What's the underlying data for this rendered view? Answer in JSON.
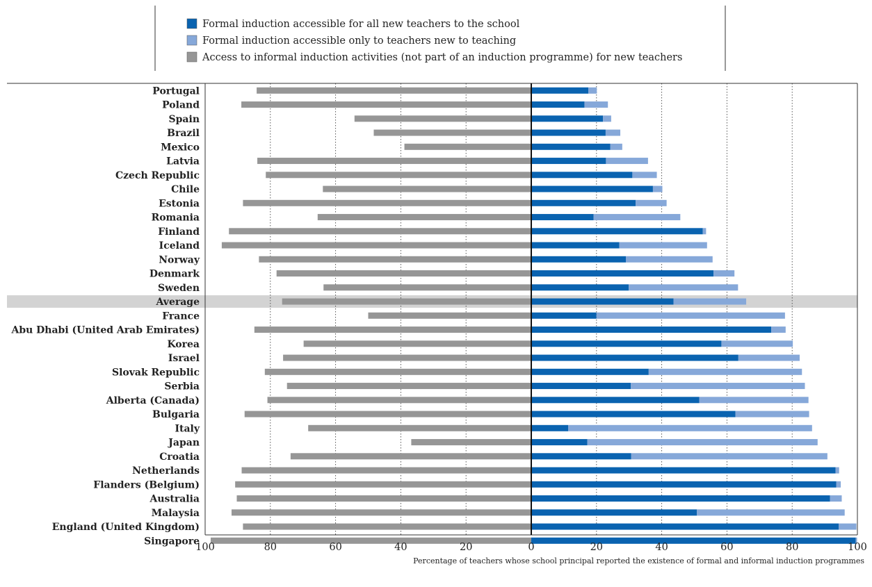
{
  "legend": {
    "items": [
      {
        "label": "Formal induction accessible for all new teachers to the school",
        "color": "#0a63b0"
      },
      {
        "label": "Formal induction accessible only to teachers new to teaching",
        "color": "#86a8d9"
      },
      {
        "label": "Access to informal induction activities (not part of an induction programme) for new teachers",
        "color": "#969696"
      }
    ]
  },
  "axis": {
    "ticks": [
      "100",
      "80",
      "60",
      "40",
      "20",
      "0",
      "20",
      "40",
      "60",
      "80",
      "100"
    ],
    "caption": "Percentage of teachers whose school principal reported the existence of formal and informal induction programmes"
  },
  "colors": {
    "formal_all": "#0a63b0",
    "formal_new": "#86a8d9",
    "informal": "#969696",
    "highlight_row": "#d3d3d3"
  },
  "chart_data": {
    "type": "bar",
    "orientation": "horizontal",
    "xlim_left": [
      100,
      0
    ],
    "xlim_right": [
      0,
      100
    ],
    "grid": "vertical dotted at 20, 40, 60, 80",
    "highlighted_category": "Average",
    "categories": [
      "Portugal",
      "Poland",
      "Spain",
      "Brazil",
      "Mexico",
      "Latvia",
      "Czech Republic",
      "Chile",
      "Estonia",
      "Romania",
      "Finland",
      "Iceland",
      "Norway",
      "Denmark",
      "Sweden",
      "Average",
      "France",
      "Abu Dhabi (United Arab Emirates)",
      "Korea",
      "Israel",
      "Slovak Republic",
      "Serbia",
      "Alberta (Canada)",
      "Bulgaria",
      "Italy",
      "Japan",
      "Croatia",
      "Netherlands",
      "Flanders (Belgium)",
      "Australia",
      "Malaysia",
      "England (United Kingdom)",
      "Singapore"
    ],
    "series": [
      {
        "name": "Formal induction accessible for all new teachers to the school",
        "side": "right",
        "stack": "base",
        "values": [
          17.5,
          16.3,
          22,
          22.8,
          24.2,
          22.9,
          31,
          37.3,
          32,
          19.1,
          52.6,
          27,
          29,
          55.9,
          29.9,
          43.6,
          20,
          73.6,
          58.3,
          63.5,
          36,
          30.5,
          51.5,
          62.6,
          11.3,
          17.2,
          30.6,
          93.3,
          93.5,
          91.6,
          50.8,
          94.3,
          99.5
        ]
      },
      {
        "name": "Formal induction accessible only to teachers new to teaching",
        "side": "right",
        "stack": "top",
        "values": [
          2.6,
          7.2,
          2.5,
          4.5,
          3.7,
          12.9,
          7.5,
          2.9,
          9.5,
          26.6,
          1,
          26.9,
          26.6,
          6.4,
          33.5,
          22.3,
          57.8,
          4.4,
          21.9,
          18.8,
          47,
          53.4,
          33.5,
          22.6,
          74.8,
          70.6,
          60.2,
          1.1,
          1.4,
          3.6,
          45.3,
          5.4,
          0.4
        ]
      },
      {
        "name": "Access to informal induction activities (not part of an induction programme) for new teachers",
        "side": "left",
        "values": [
          84.2,
          88.9,
          54.2,
          48.3,
          38.9,
          84,
          81.4,
          63.9,
          88.4,
          65.5,
          92.7,
          94.9,
          83.5,
          78.1,
          63.7,
          76.4,
          50,
          84.9,
          69.8,
          76.1,
          81.7,
          74.9,
          80.9,
          87.9,
          68.4,
          36.8,
          73.8,
          88.8,
          90.8,
          90.3,
          91.9,
          88.4,
          98.3
        ]
      }
    ]
  }
}
